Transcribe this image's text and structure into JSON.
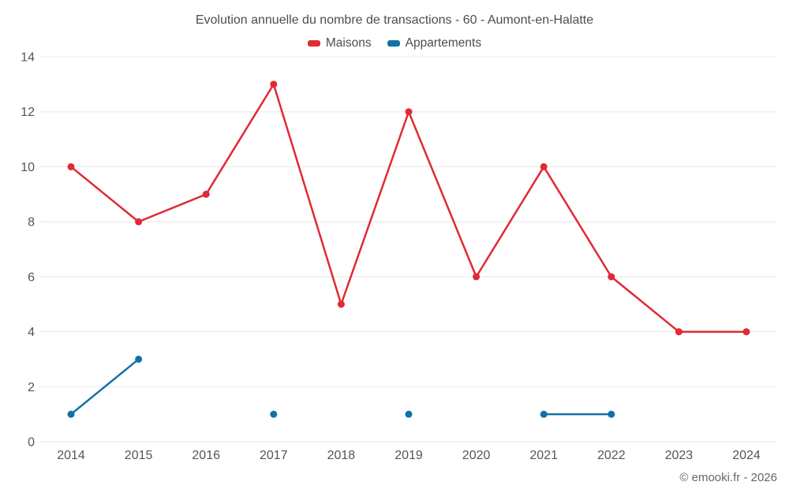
{
  "chart_data": {
    "type": "line",
    "title": "Evolution annuelle du nombre de transactions - 60 - Aumont-en-Halatte",
    "categories": [
      "2014",
      "2015",
      "2016",
      "2017",
      "2018",
      "2019",
      "2020",
      "2021",
      "2022",
      "2023",
      "2024"
    ],
    "series": [
      {
        "name": "Maisons",
        "color": "#e02a35",
        "values": [
          10,
          8,
          9,
          13,
          5,
          12,
          6,
          10,
          6,
          4,
          4
        ]
      },
      {
        "name": "Appartements",
        "color": "#1471a8",
        "values": [
          1,
          3,
          null,
          1,
          null,
          1,
          null,
          1,
          1,
          null,
          null
        ]
      }
    ],
    "ylim": [
      0,
      14
    ],
    "y_ticks": [
      0,
      2,
      4,
      6,
      8,
      10,
      12,
      14
    ],
    "grid": "horizontal",
    "legend_position": "top",
    "grid_color": "#e8e8e8",
    "tick_label_color": "#555555"
  },
  "footer": {
    "copyright": "© emooki.fr - 2026"
  }
}
